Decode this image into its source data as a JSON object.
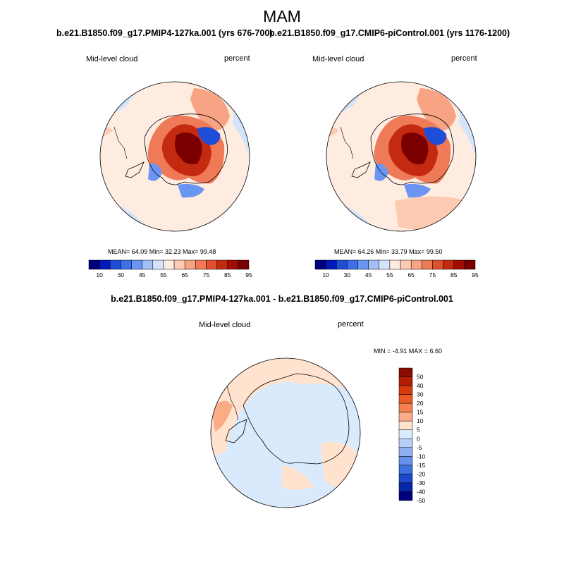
{
  "figure": {
    "title": "MAM",
    "panels": [
      {
        "title": "b.e21.B1850.f09_g17.PMIP4-127ka.001 (yrs 676-700)",
        "variable": "Mid-level cloud",
        "units": "percent",
        "stats": "MEAN=  64.09  Min=  32.23  Max=  99.48",
        "colorbar_labels": [
          "10",
          "30",
          "45",
          "55",
          "65",
          "75",
          "85",
          "95"
        ]
      },
      {
        "title": "b.e21.B1850.f09_g17.CMIP6-piControl.001 (yrs 1176-1200)",
        "variable": "Mid-level cloud",
        "units": "percent",
        "stats": "MEAN=  64.26  Min=  33.79  Max=  99.50",
        "colorbar_labels": [
          "10",
          "30",
          "45",
          "55",
          "65",
          "75",
          "85",
          "95"
        ]
      },
      {
        "title": "b.e21.B1850.f09_g17.PMIP4-127ka.001 - b.e21.B1850.f09_g17.CMIP6-piControl.001",
        "variable": "Mid-level cloud",
        "units": "percent",
        "stats": "MIN =  -4.91 MAX =   6.60",
        "colorbar_labels": [
          "50",
          "40",
          "30",
          "20",
          "15",
          "10",
          "5",
          "0",
          "-5",
          "-10",
          "-15",
          "-20",
          "-30",
          "-40",
          "-50"
        ]
      }
    ],
    "colors": {
      "abs_scale": [
        "#00007f",
        "#0019b9",
        "#1e4ed8",
        "#3d71e9",
        "#6b95f2",
        "#a3bdf5",
        "#d3e4fb",
        "#ffece0",
        "#fdcbb2",
        "#f7a384",
        "#ef7a57",
        "#e0502d",
        "#c42a10",
        "#a00e03",
        "#7a0000"
      ],
      "diff_scale": [
        "#8b0c00",
        "#b31e02",
        "#d73a0d",
        "#ea5a24",
        "#f47f4f",
        "#fbab86",
        "#ffe3cf",
        "#d9eafd",
        "#b7cff7",
        "#8fb0f1",
        "#6790ea",
        "#3f6edf",
        "#1d49cb",
        "#0826a8",
        "#00007f"
      ],
      "land_outline": "#000000"
    }
  }
}
